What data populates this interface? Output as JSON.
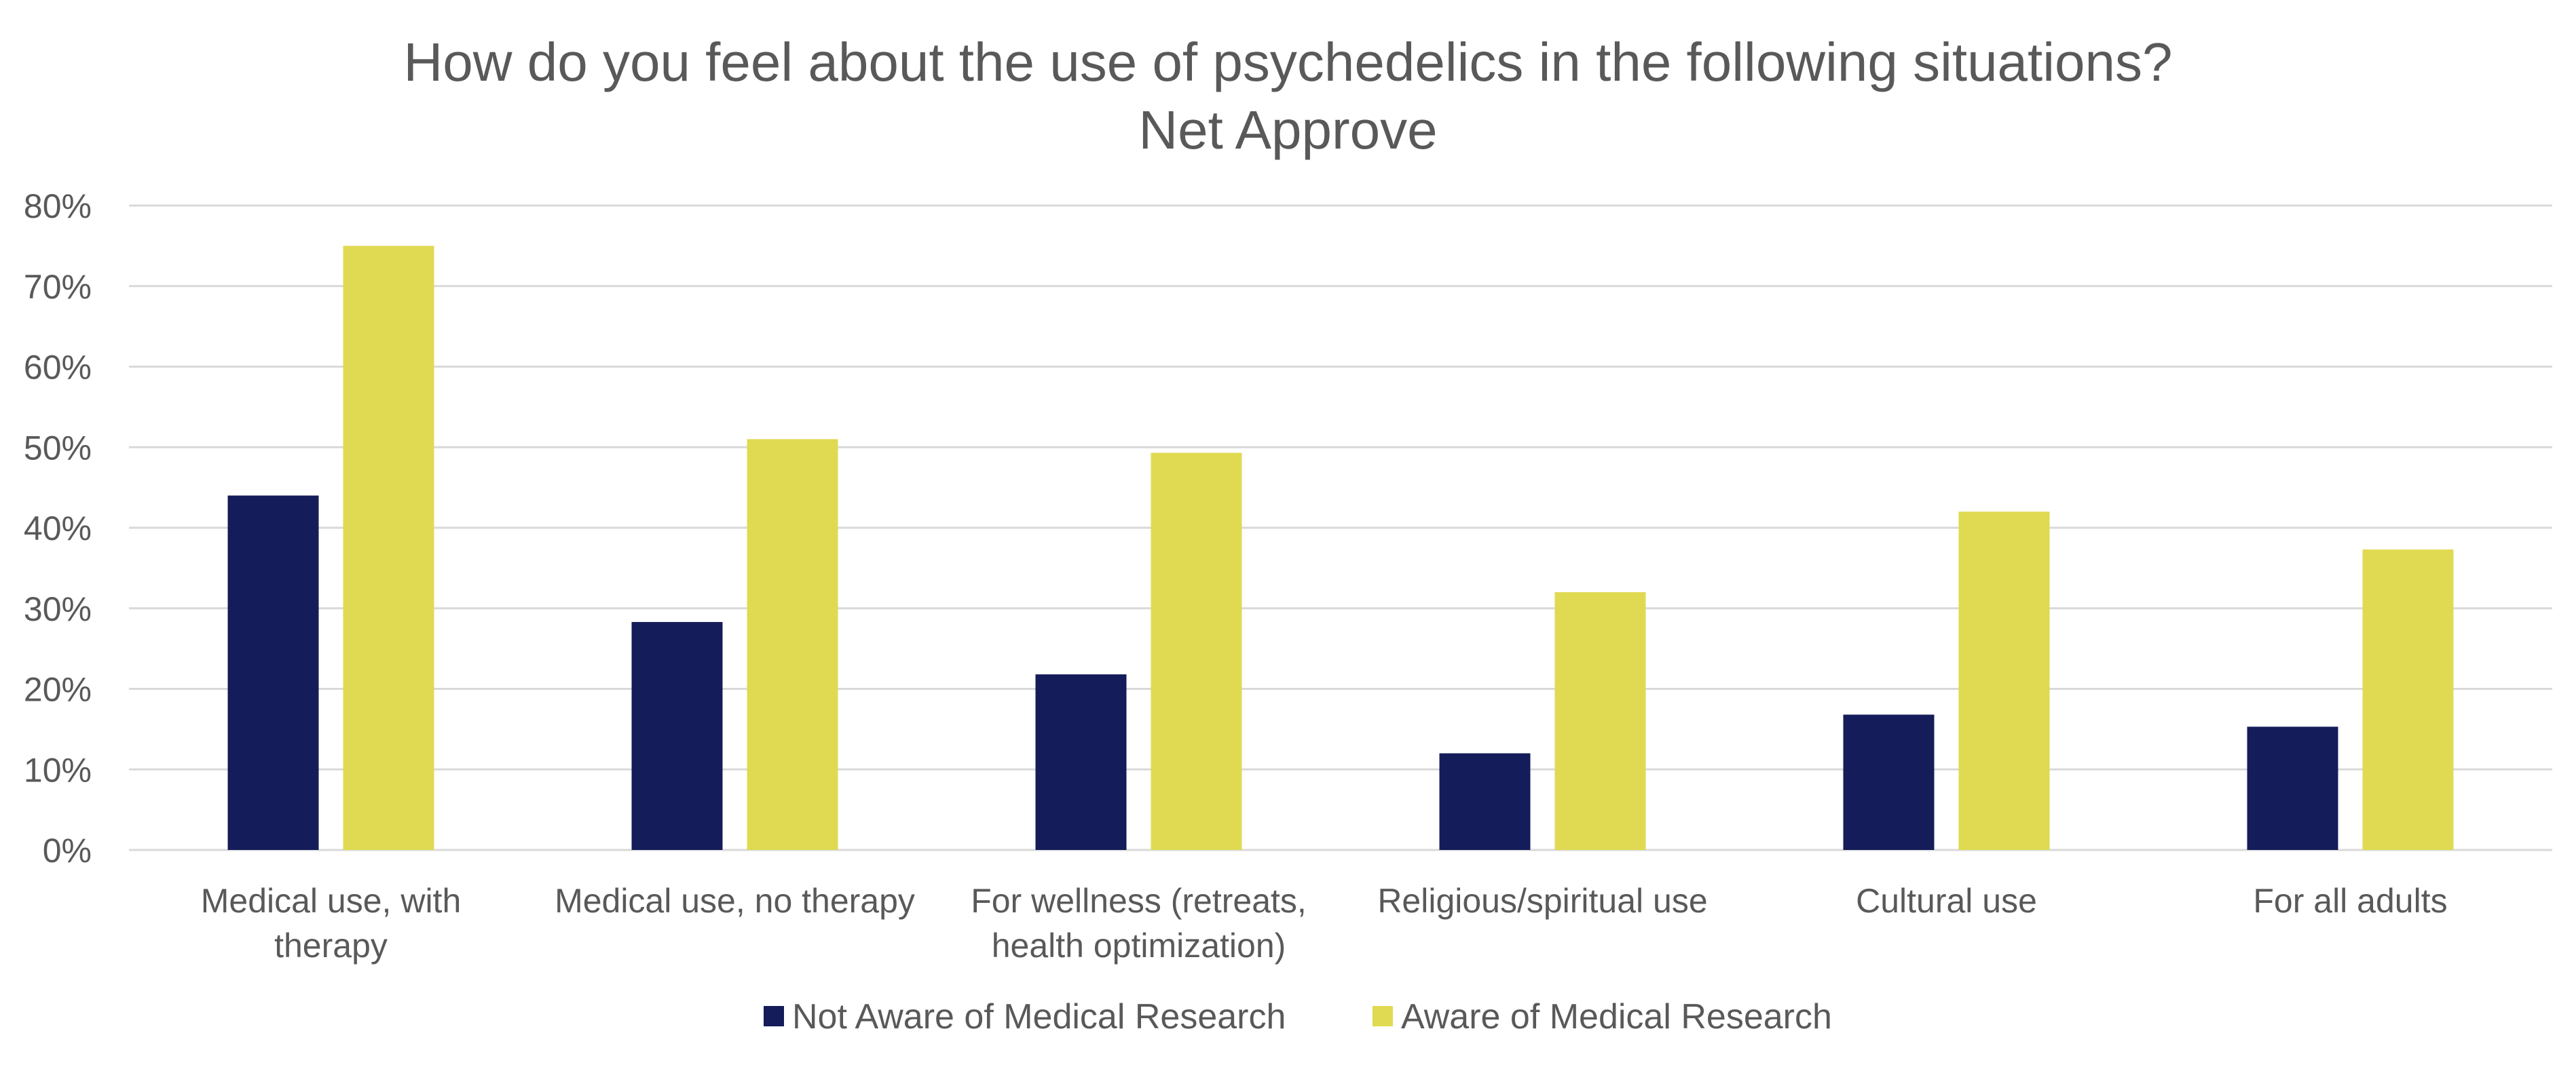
{
  "chart_data": {
    "type": "bar",
    "title": "How do you feel about the use of psychedelics in the following situations?",
    "subtitle": "Net Approve",
    "xlabel": "",
    "ylabel": "",
    "categories": [
      [
        "Medical use, with",
        "therapy"
      ],
      [
        "Medical use, no therapy"
      ],
      [
        "For wellness (retreats,",
        "health optimization)"
      ],
      [
        "Religious/spiritual use"
      ],
      [
        "Cultural use"
      ],
      [
        "For all adults"
      ]
    ],
    "series": [
      {
        "name": "Not Aware of Medical Research",
        "color": "#141c5a",
        "values": [
          44,
          28.3,
          21.8,
          12,
          16.8,
          15.3
        ]
      },
      {
        "name": "Aware of Medical Research",
        "color": "#e0da52",
        "values": [
          75,
          51,
          49.3,
          32,
          42,
          37.3
        ]
      }
    ],
    "ylim": [
      0,
      80
    ],
    "yticks": [
      0,
      10,
      20,
      30,
      40,
      50,
      60,
      70,
      80
    ],
    "ytick_format": "percent",
    "grid": true,
    "legend_position": "bottom",
    "colors": {
      "gridline": "#d9d9d9",
      "text": "#595959"
    }
  }
}
